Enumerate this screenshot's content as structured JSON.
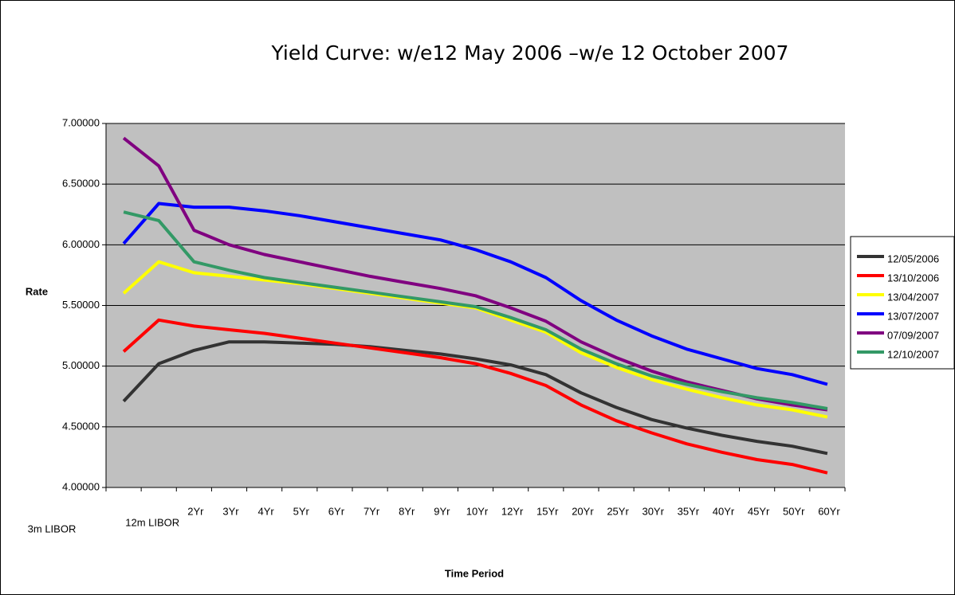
{
  "chart_data": {
    "type": "line",
    "title": "Yield Curve: w/e12 May 2006 –w/e 12 October 2007",
    "y_label": "Rate",
    "x_label": "Time Period",
    "categories": [
      "3m LIBOR",
      "12m LIBOR",
      "2Yr",
      "3Yr",
      "4Yr",
      "5Yr",
      "6Yr",
      "7Yr",
      "8Yr",
      "9Yr",
      "10Yr",
      "12Yr",
      "15Yr",
      "20Yr",
      "25Yr",
      "30Yr",
      "35Yr",
      "40Yr",
      "45Yr",
      "50Yr",
      "60Yr"
    ],
    "series": [
      {
        "name": "12/05/2006",
        "color": "#333333",
        "values": [
          4.71,
          5.02,
          5.13,
          5.2,
          5.2,
          5.19,
          5.18,
          5.16,
          5.13,
          5.1,
          5.06,
          5.01,
          4.93,
          4.78,
          4.66,
          4.56,
          4.49,
          4.43,
          4.38,
          4.34,
          4.28
        ]
      },
      {
        "name": "13/10/2006",
        "color": "#ff0000",
        "values": [
          5.12,
          5.38,
          5.33,
          5.3,
          5.27,
          5.23,
          5.19,
          5.15,
          5.11,
          5.07,
          5.02,
          4.94,
          4.84,
          4.68,
          4.55,
          4.45,
          4.36,
          4.29,
          4.23,
          4.19,
          4.12
        ]
      },
      {
        "name": "13/04/2007",
        "color": "#ffff00",
        "values": [
          5.6,
          5.86,
          5.77,
          5.74,
          5.71,
          5.68,
          5.64,
          5.6,
          5.56,
          5.52,
          5.48,
          5.38,
          5.28,
          5.11,
          4.99,
          4.89,
          4.81,
          4.74,
          4.68,
          4.64,
          4.58
        ]
      },
      {
        "name": "13/07/2007",
        "color": "#0000ff",
        "values": [
          6.01,
          6.34,
          6.31,
          6.31,
          6.28,
          6.24,
          6.19,
          6.14,
          6.09,
          6.04,
          5.96,
          5.86,
          5.73,
          5.54,
          5.38,
          5.25,
          5.14,
          5.06,
          4.98,
          4.93,
          4.85
        ]
      },
      {
        "name": "07/09/2007",
        "color": "#800080",
        "values": [
          6.88,
          6.65,
          6.12,
          6.0,
          5.92,
          5.86,
          5.8,
          5.74,
          5.69,
          5.64,
          5.58,
          5.48,
          5.37,
          5.2,
          5.07,
          4.96,
          4.87,
          4.8,
          4.73,
          4.68,
          4.64
        ]
      },
      {
        "name": "12/10/2007",
        "color": "#339966",
        "values": [
          6.27,
          6.2,
          5.86,
          5.79,
          5.73,
          5.69,
          5.65,
          5.61,
          5.57,
          5.53,
          5.49,
          5.4,
          5.3,
          5.14,
          5.02,
          4.92,
          4.85,
          4.79,
          4.74,
          4.7,
          4.65
        ]
      }
    ],
    "ylim": [
      4,
      7
    ],
    "yticks": [
      {
        "value": 4,
        "label": "4.00000"
      },
      {
        "value": 4.5,
        "label": "4.50000"
      },
      {
        "value": 5,
        "label": "5.00000"
      },
      {
        "value": 5.5,
        "label": "5.50000"
      },
      {
        "value": 6,
        "label": "6.00000"
      },
      {
        "value": 6.5,
        "label": "6.50000"
      },
      {
        "value": 7,
        "label": "7.00000"
      }
    ],
    "grid": true,
    "legend": "right",
    "plot_background": "#c0c0c0"
  }
}
